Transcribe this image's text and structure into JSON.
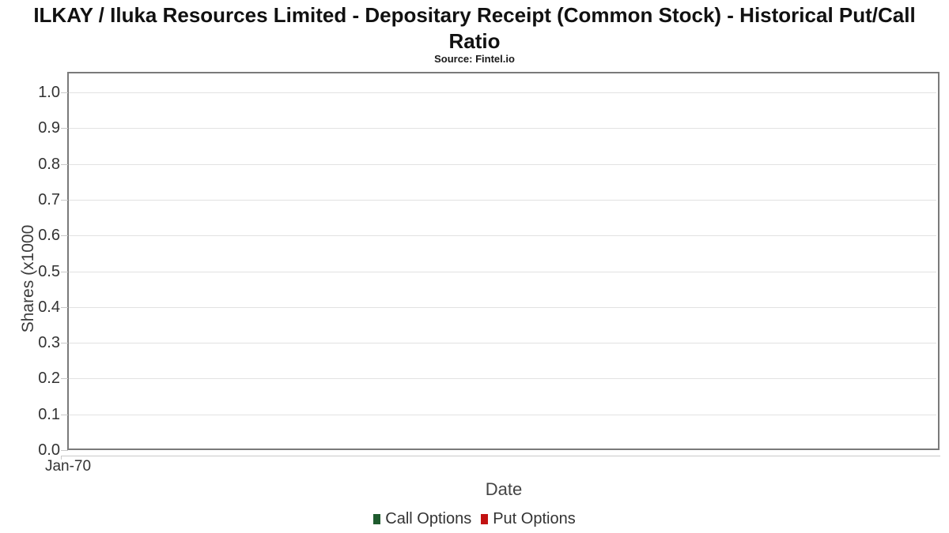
{
  "chart_data": {
    "type": "line",
    "title": "ILKAY / Iluka Resources Limited - Depositary Receipt (Common Stock) - Historical Put/Call Ratio",
    "subtitle": "Source: Fintel.io",
    "xlabel": "Date",
    "ylabel": "Shares (x1000",
    "x_ticks": [
      "Jan-70"
    ],
    "y_ticks": [
      "1.0",
      "0.9",
      "0.8",
      "0.7",
      "0.6",
      "0.5",
      "0.4",
      "0.3",
      "0.2",
      "0.1",
      "0.0"
    ],
    "ylim": [
      0.0,
      1.05
    ],
    "grid": true,
    "legend_position": "bottom",
    "series": [
      {
        "name": "Call Options",
        "color": "#1e5b2e",
        "values": []
      },
      {
        "name": "Put Options",
        "color": "#c21212",
        "values": []
      }
    ]
  },
  "colors": {
    "axis_border": "#7a7a7a",
    "gridline": "#e2e2e2",
    "tick": "#c9c9c9",
    "call_green": "#1e5b2e",
    "put_red": "#c21212"
  }
}
